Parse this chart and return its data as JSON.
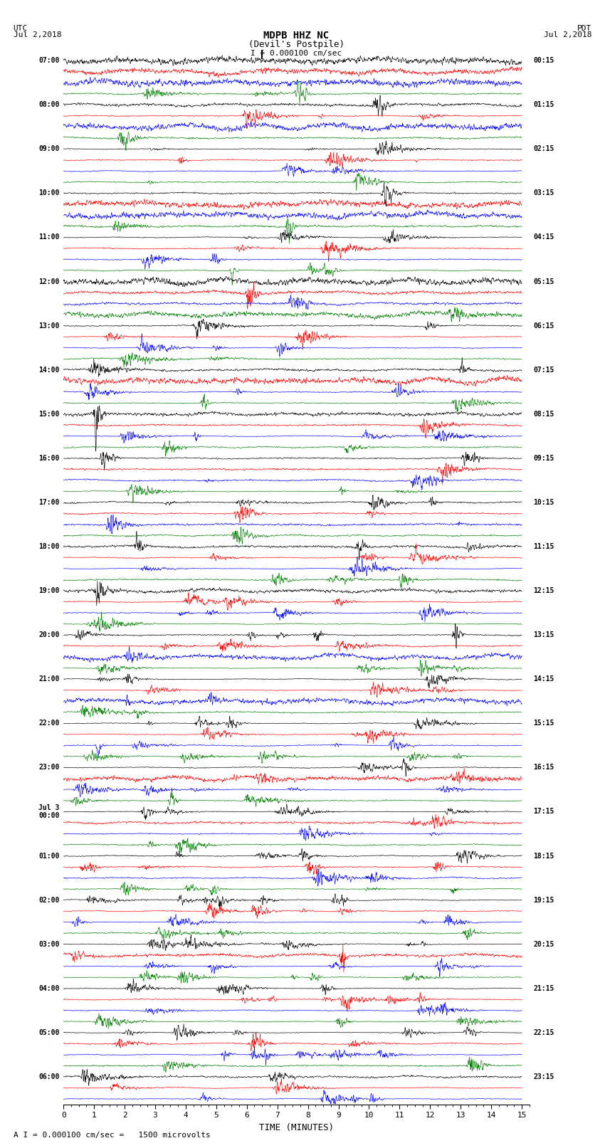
{
  "title_line1": "MDPB HHZ NC",
  "title_line2": "(Devil's Postpile)",
  "scale_label": "I = 0.000100 cm/sec",
  "utc_label": "UTC\nJul 2,2018",
  "pdt_label": "PDT\nJul 2,2018",
  "bottom_label": "A I = 0.000100 cm/sec =   1500 microvolts",
  "xlabel": "TIME (MINUTES)",
  "xticks": [
    0,
    1,
    2,
    3,
    4,
    5,
    6,
    7,
    8,
    9,
    10,
    11,
    12,
    13,
    14,
    15
  ],
  "fig_width": 8.5,
  "fig_height": 16.13,
  "dpi": 100,
  "left_times": [
    "07:00",
    "",
    "",
    "",
    "08:00",
    "",
    "",
    "",
    "09:00",
    "",
    "",
    "",
    "10:00",
    "",
    "",
    "",
    "11:00",
    "",
    "",
    "",
    "12:00",
    "",
    "",
    "",
    "13:00",
    "",
    "",
    "",
    "14:00",
    "",
    "",
    "",
    "15:00",
    "",
    "",
    "",
    "16:00",
    "",
    "",
    "",
    "17:00",
    "",
    "",
    "",
    "18:00",
    "",
    "",
    "",
    "19:00",
    "",
    "",
    "",
    "20:00",
    "",
    "",
    "",
    "21:00",
    "",
    "",
    "",
    "22:00",
    "",
    "",
    "",
    "23:00",
    "",
    "",
    "",
    "Jul 3\n00:00",
    "",
    "",
    "",
    "01:00",
    "",
    "",
    "",
    "02:00",
    "",
    "",
    "",
    "03:00",
    "",
    "",
    "",
    "04:00",
    "",
    "",
    "",
    "05:00",
    "",
    "",
    "",
    "06:00",
    "",
    ""
  ],
  "right_times": [
    "00:15",
    "",
    "",
    "",
    "01:15",
    "",
    "",
    "",
    "02:15",
    "",
    "",
    "",
    "03:15",
    "",
    "",
    "",
    "04:15",
    "",
    "",
    "",
    "05:15",
    "",
    "",
    "",
    "06:15",
    "",
    "",
    "",
    "07:15",
    "",
    "",
    "",
    "08:15",
    "",
    "",
    "",
    "09:15",
    "",
    "",
    "",
    "10:15",
    "",
    "",
    "",
    "11:15",
    "",
    "",
    "",
    "12:15",
    "",
    "",
    "",
    "13:15",
    "",
    "",
    "",
    "14:15",
    "",
    "",
    "",
    "15:15",
    "",
    "",
    "",
    "16:15",
    "",
    "",
    "",
    "17:15",
    "",
    "",
    "",
    "18:15",
    "",
    "",
    "",
    "19:15",
    "",
    "",
    "",
    "20:15",
    "",
    "",
    "",
    "21:15",
    "",
    "",
    "",
    "22:15",
    "",
    "",
    "",
    "23:15",
    "",
    ""
  ],
  "trace_colors": [
    "black",
    "red",
    "blue",
    "green"
  ],
  "n_rows": 95,
  "n_points": 1800,
  "background_color": "white",
  "font_family": "monospace"
}
